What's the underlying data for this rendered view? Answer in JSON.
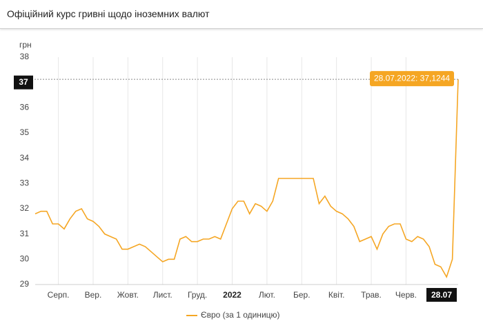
{
  "chart_data": {
    "type": "line",
    "title": "Офіційний курс гривні щодо іноземних валют",
    "ylabel": "грн",
    "annotation": "28.07.2022: 37,1244",
    "categories": [
      null,
      null,
      null,
      null,
      "Серп.",
      null,
      null,
      null,
      null,
      null,
      "Вер.",
      null,
      null,
      null,
      null,
      null,
      "Жовт.",
      null,
      null,
      null,
      null,
      null,
      "Лист.",
      null,
      null,
      null,
      null,
      null,
      "Груд.",
      null,
      null,
      null,
      null,
      null,
      "2022",
      null,
      null,
      null,
      null,
      null,
      "Лют.",
      null,
      null,
      null,
      null,
      null,
      "Бер.",
      null,
      null,
      null,
      null,
      null,
      "Квіт.",
      null,
      null,
      null,
      null,
      null,
      "Трав.",
      null,
      null,
      null,
      null,
      null,
      "Черв.",
      null,
      null,
      null,
      null,
      null,
      null,
      null,
      null,
      "28.07"
    ],
    "series": [
      {
        "name": "Євро (за 1 одиницю)",
        "color": "#f5a623",
        "values": [
          31.8,
          31.9,
          31.9,
          31.4,
          31.4,
          31.2,
          31.6,
          31.9,
          32.0,
          31.6,
          31.5,
          31.3,
          31.0,
          30.9,
          30.8,
          30.4,
          30.4,
          30.5,
          30.6,
          30.5,
          30.3,
          30.1,
          29.9,
          30.0,
          30.0,
          30.8,
          30.9,
          30.7,
          30.7,
          30.8,
          30.8,
          30.9,
          30.8,
          31.4,
          32.0,
          32.3,
          32.3,
          31.8,
          32.2,
          32.1,
          31.9,
          32.3,
          33.2,
          33.2,
          33.2,
          33.2,
          33.2,
          33.2,
          33.2,
          32.2,
          32.5,
          32.1,
          31.9,
          31.8,
          31.6,
          31.3,
          30.7,
          30.8,
          30.9,
          30.4,
          31.0,
          31.3,
          31.4,
          31.4,
          30.8,
          30.7,
          30.9,
          30.8,
          30.5,
          29.8,
          29.7,
          29.3,
          30.0,
          37.1244
        ]
      }
    ],
    "ylim": [
      29,
      38
    ],
    "yticks": [
      29,
      30,
      31,
      32,
      33,
      34,
      35,
      36,
      37,
      38
    ],
    "grid": true,
    "legend": "bottom"
  }
}
